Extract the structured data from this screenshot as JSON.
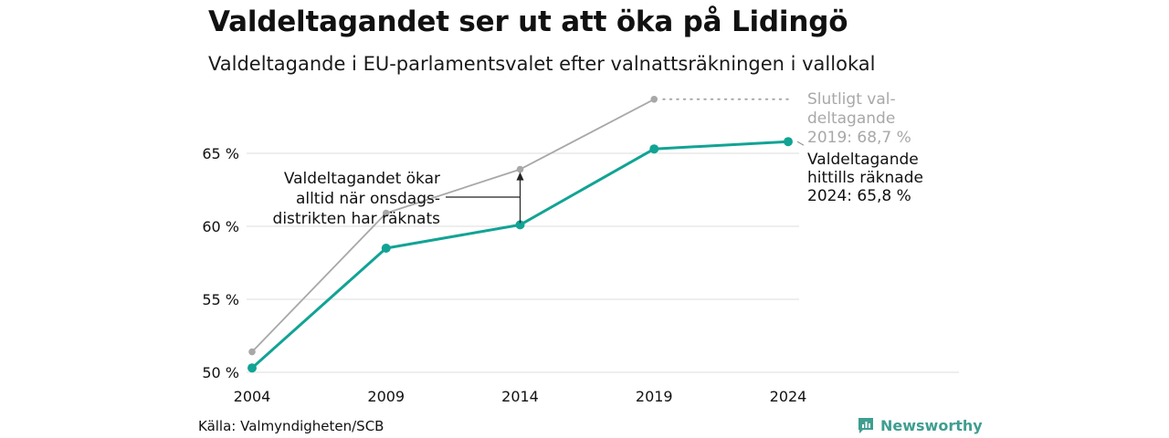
{
  "header": {
    "title": "Valdeltagandet ser ut att öka på Lidingö",
    "subtitle": "Valdeltagande i EU-parlamentsvalet efter valnattsräkningen i vallokal"
  },
  "footer": {
    "source": "Källa: Valmyndigheten/SCB",
    "brand": "Newsworthy"
  },
  "colors": {
    "counted": "#12a395",
    "final": "#a8a8a8",
    "grid": "#e3e3e3",
    "brand": "#3f9e90"
  },
  "chart_data": {
    "type": "line",
    "title": "Valdeltagandet ser ut att öka på Lidingö",
    "subtitle": "Valdeltagande i EU-parlamentsvalet efter valnattsräkningen i vallokal",
    "x": [
      "2004",
      "2009",
      "2014",
      "2019",
      "2024"
    ],
    "ylim": [
      50,
      69
    ],
    "yticks": [
      50,
      55,
      60,
      65
    ],
    "ytick_labels": [
      "50 %",
      "55 %",
      "60 %",
      "65 %"
    ],
    "grid": true,
    "series": [
      {
        "key": "final",
        "values": [
          51.4,
          60.9,
          63.9,
          68.7,
          null
        ],
        "color": "#a8a8a8",
        "style": "thin"
      },
      {
        "key": "counted",
        "values": [
          50.3,
          58.5,
          60.1,
          65.3,
          65.8
        ],
        "color": "#12a395",
        "style": "thick"
      }
    ],
    "annotations": [
      {
        "key": "final_label",
        "lines": [
          "Slutligt val-",
          "deltagande",
          "2019: 68,7 %"
        ],
        "color": "#a8a8a8"
      },
      {
        "key": "counted_label",
        "lines": [
          "Valdeltagande",
          "hittills räknade",
          "2024: 65,8 %"
        ],
        "color": "#111111"
      },
      {
        "key": "increase_note",
        "lines": [
          "Valdeltagandet ökar",
          "alltid när onsdags-",
          "distrikten har räknats"
        ],
        "color": "#111111"
      }
    ]
  }
}
